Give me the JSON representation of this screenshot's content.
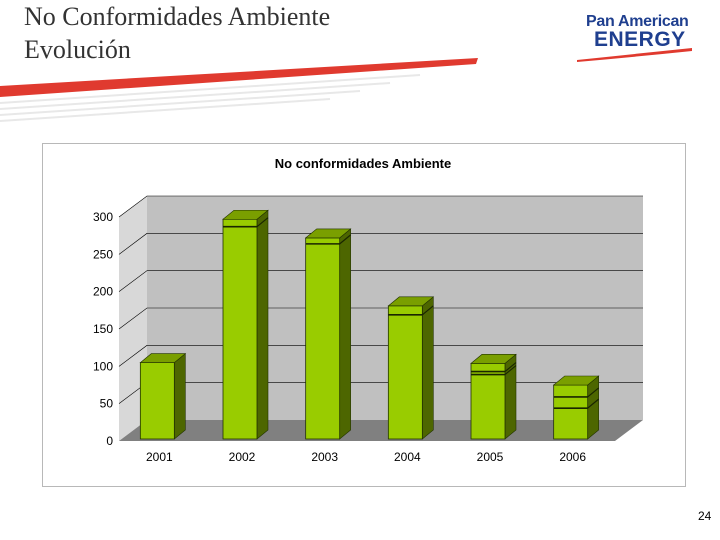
{
  "slide": {
    "title_line1": "No Conformidades Ambiente",
    "title_line2": "Evolución",
    "page_number": "24"
  },
  "logo": {
    "line1": "Pan American",
    "line2": "ENERGY",
    "colors": {
      "text": "#1f3f8f",
      "swoosh": "#e03a2f"
    }
  },
  "colors": {
    "header_swoosh": "#e03a2f",
    "bar_front": "#99cc00",
    "bar_side": "#4d6600",
    "bar_top": "#7a9f00",
    "plot_wall": "#c0c0c0",
    "plot_floor": "#808080"
  },
  "chart_data": {
    "type": "bar",
    "title": "No conformidades Ambiente",
    "categories": [
      "2001",
      "2002",
      "2003",
      "2004",
      "2005",
      "2006"
    ],
    "series": [
      {
        "values": [
          105,
          297,
          272,
          181,
          104,
          75
        ]
      }
    ],
    "segment_lines": [
      [],
      [
        287
      ],
      [
        264
      ],
      [
        169
      ],
      [
        89,
        93
      ],
      [
        44,
        59
      ]
    ],
    "ylim": [
      0,
      300
    ],
    "yticks": [
      "0",
      "50",
      "100",
      "150",
      "200",
      "250",
      "300"
    ],
    "grid": true,
    "style": "3d-column"
  }
}
